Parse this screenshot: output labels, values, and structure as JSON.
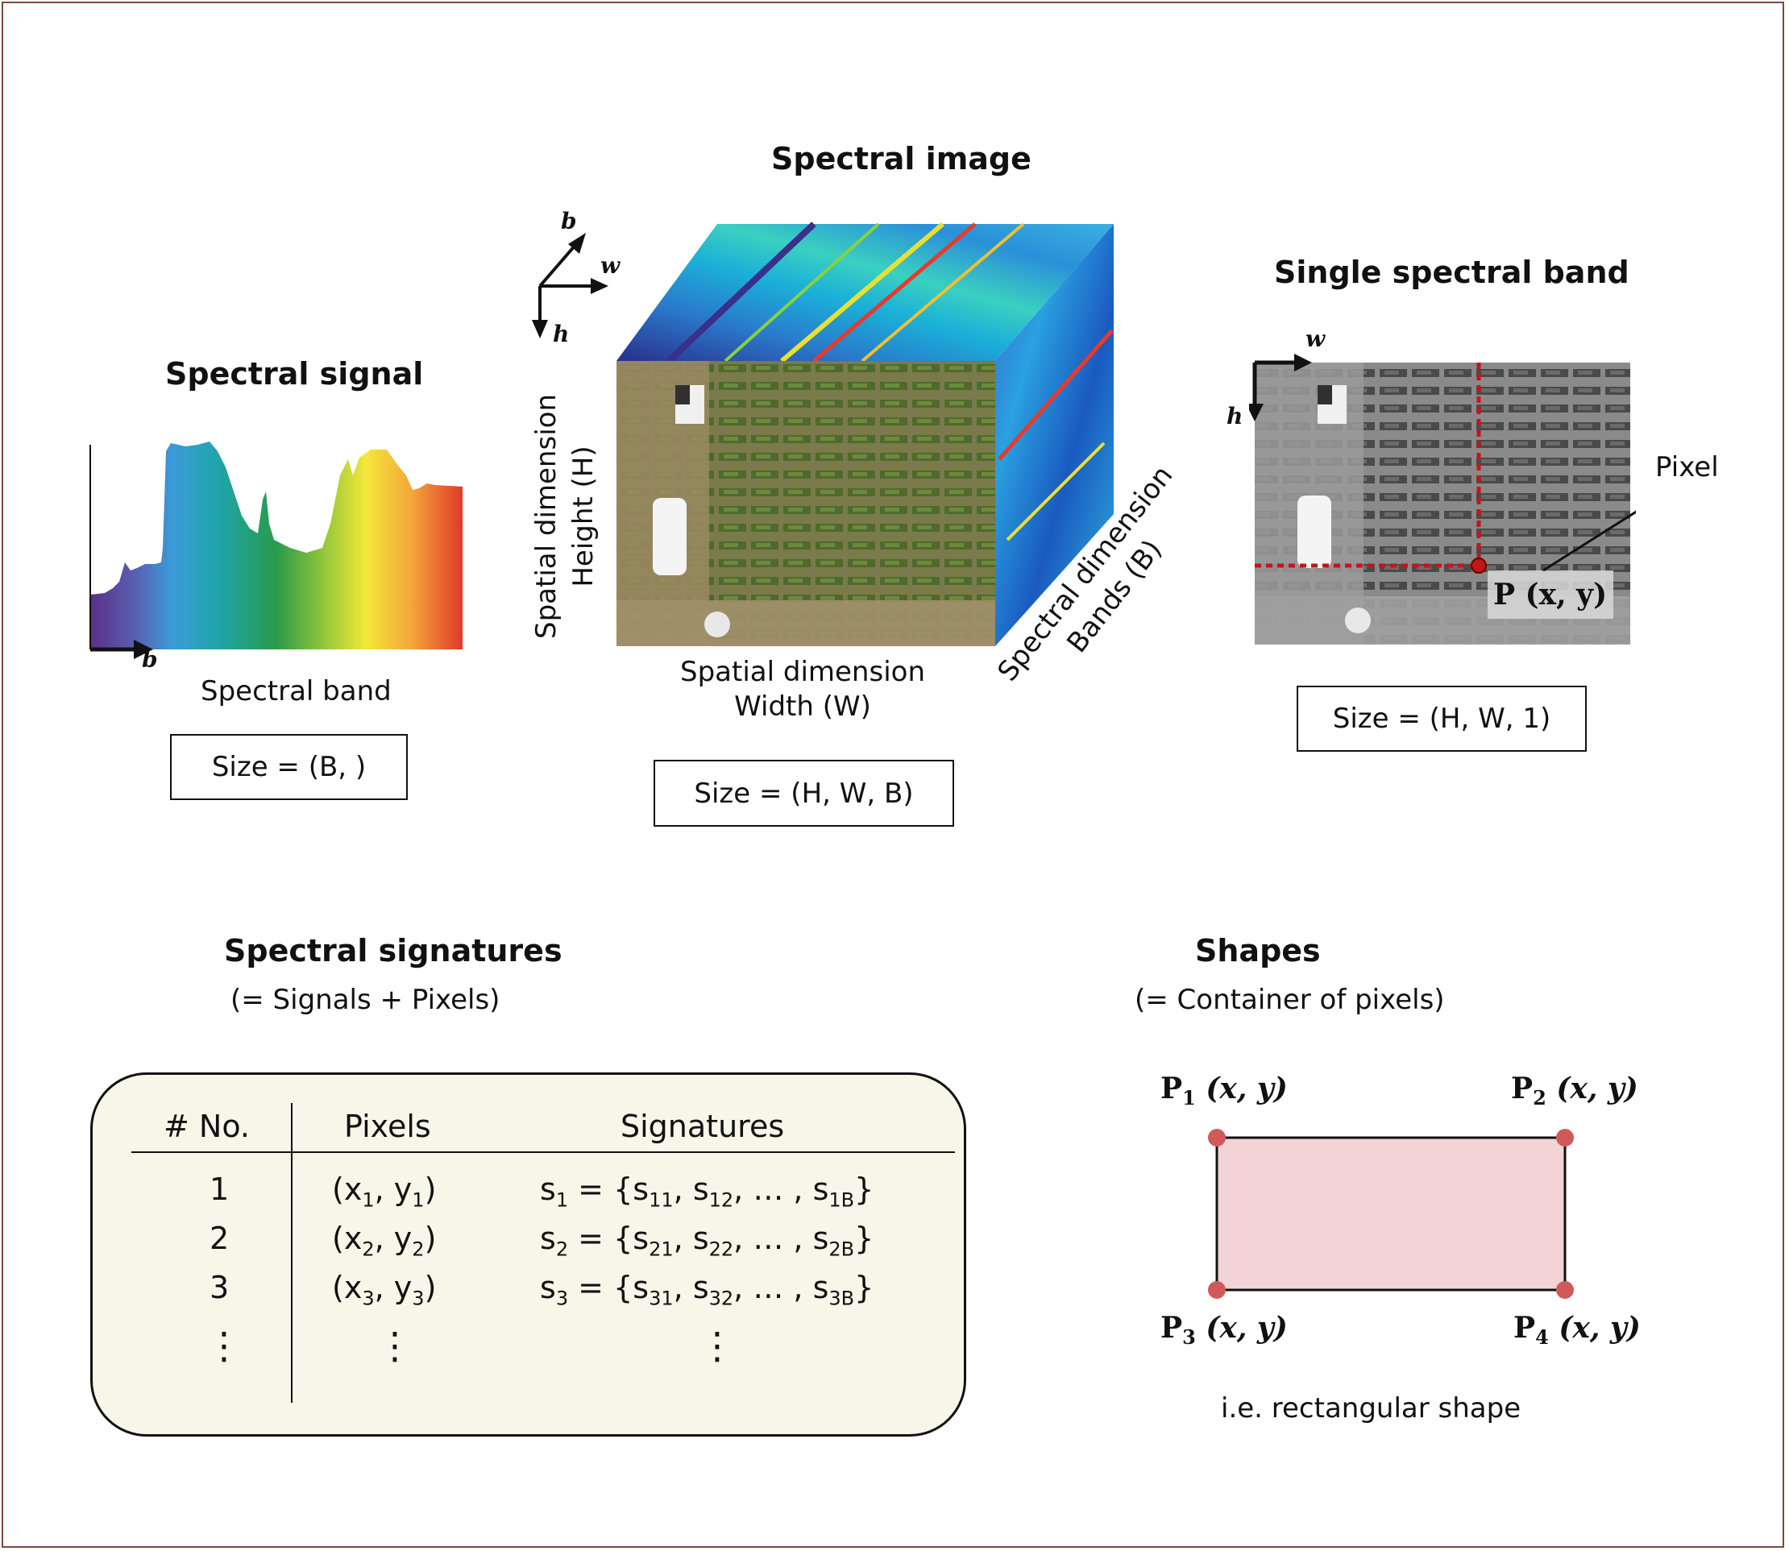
{
  "spectral_image": {
    "title": "Spectral image",
    "axis_b": "b",
    "axis_w": "w",
    "axis_h": "h",
    "height_label_line1": "Spatial dimension",
    "height_label_line2": "Height (H)",
    "width_label_line1": "Spatial dimension",
    "width_label_line2": "Width (W)",
    "bands_label_line1": "Spectral dimension",
    "bands_label_line2": "Bands (B)",
    "size": "Size = (H, W, B)"
  },
  "spectral_signal": {
    "title": "Spectral signal",
    "axis_b": "b",
    "xlabel": "Spectral band",
    "size": "Size = (B, )"
  },
  "single_band": {
    "title": "Single spectral band",
    "axis_w": "w",
    "axis_h": "h",
    "pixel_label": "Pixel",
    "point_label": "P (x, y)",
    "size": "Size = (H, W, 1)"
  },
  "signatures": {
    "title": "Spectral signatures",
    "subtitle": "(= Signals + Pixels)",
    "headers": [
      "# No.",
      "Pixels",
      "Signatures"
    ],
    "rows": [
      {
        "no": "1",
        "px": "x",
        "py": "y",
        "sub": "1",
        "s": "s",
        "s1": "11",
        "s2": "12",
        "sB": "1B"
      },
      {
        "no": "2",
        "px": "x",
        "py": "y",
        "sub": "2",
        "s": "s",
        "s1": "21",
        "s2": "22",
        "sB": "2B"
      },
      {
        "no": "3",
        "px": "x",
        "py": "y",
        "sub": "3",
        "s": "s",
        "s1": "31",
        "s2": "32",
        "sB": "3B"
      }
    ],
    "ellipsis": "⋮"
  },
  "shapes": {
    "title": "Shapes",
    "subtitle": "(= Container of pixels)",
    "p1": "1",
    "p2": "2",
    "p3": "3",
    "p4": "4",
    "P": "P",
    "coord": "(x, y)",
    "caption": "i.e. rectangular shape"
  },
  "colors": {
    "frame": "#7a4a3a",
    "table_bg": "#f7f6e9",
    "rect_fill": "#f2d4d6",
    "corner_dot": "#d05a5a",
    "pixel_marker": "#c01818"
  }
}
